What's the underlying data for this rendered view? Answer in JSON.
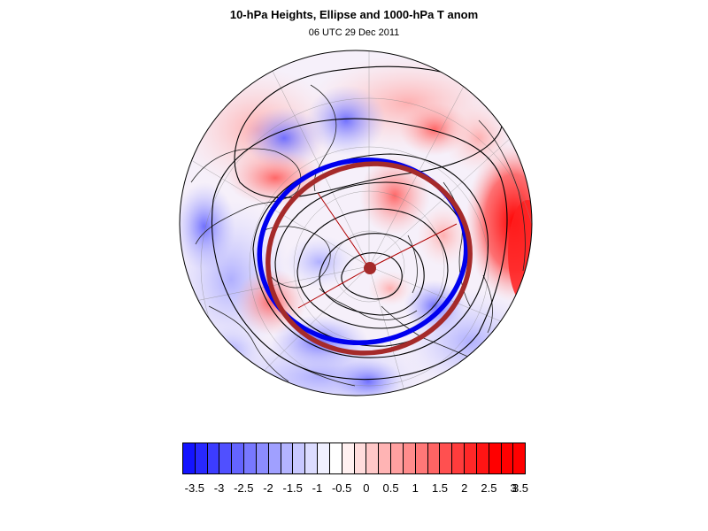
{
  "title": "10-hPa Heights, Ellipse and 1000-hPa T anom",
  "subtitle": "06 UTC 29 Dec 2011",
  "map": {
    "projection": "north-polar-stereographic",
    "ellipse_colors": {
      "fitted": "#0000ee",
      "reference": "#a52a2a"
    },
    "contour_color": "#000000"
  },
  "colorbar": {
    "colors": [
      "#1414ff",
      "#2828ff",
      "#3c3cff",
      "#5050ff",
      "#6464ff",
      "#7878ff",
      "#8c8cff",
      "#a0a0ff",
      "#b4b4ff",
      "#c8c8ff",
      "#dcdcff",
      "#f0f0ff",
      "#ffffff",
      "#fff0f0",
      "#ffdcdc",
      "#ffc8c8",
      "#ffb4b4",
      "#ffa0a0",
      "#ff8c8c",
      "#ff7878",
      "#ff6464",
      "#ff5050",
      "#ff3c3c",
      "#ff2828",
      "#ff1414",
      "#ff0000",
      "#ff0000",
      "#ff0000"
    ],
    "tick_labels": [
      "-3.5",
      "-3",
      "-2.5",
      "-2",
      "-1.5",
      "-1",
      "-0.5",
      "0",
      "0.5",
      "1",
      "1.5",
      "2",
      "2.5",
      "3",
      "3.5"
    ]
  }
}
